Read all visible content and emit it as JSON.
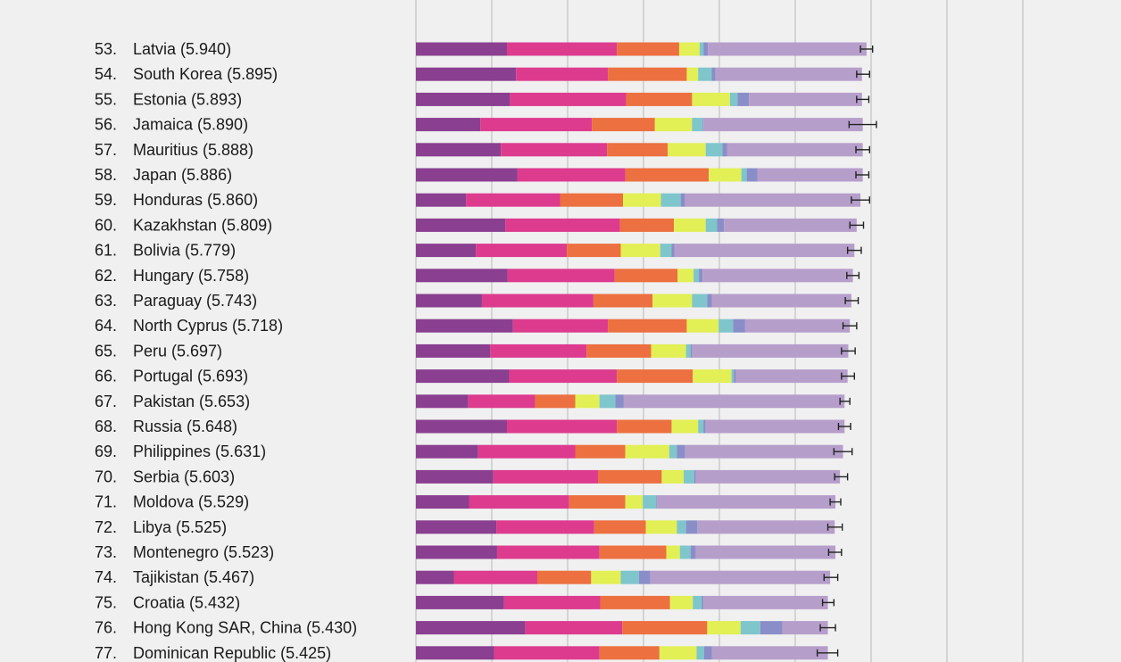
{
  "chart_data": {
    "type": "bar",
    "stacked": true,
    "orientation": "horizontal",
    "xlim": [
      0,
      8
    ],
    "grid": true,
    "colors": [
      "#8a3f90",
      "#dd3b8e",
      "#ec7040",
      "#e2ef55",
      "#7ec6cc",
      "#8a8ec8",
      "#b69ecb"
    ],
    "rows": [
      {
        "rank": "53.",
        "country": "Latvia",
        "score_label": "(5.940)",
        "score": 5.94,
        "ci": [
          5.86,
          6.02
        ],
        "segments": [
          1.2,
          1.45,
          0.82,
          0.27,
          0.05,
          0.06,
          2.09
        ]
      },
      {
        "rank": "54.",
        "country": "South Korea",
        "score_label": "(5.895)",
        "score": 5.895,
        "ci": [
          5.81,
          5.98
        ],
        "segments": [
          1.32,
          1.21,
          1.04,
          0.15,
          0.18,
          0.05,
          1.93
        ]
      },
      {
        "rank": "55.",
        "country": "Estonia",
        "score_label": "(5.893)",
        "score": 5.893,
        "ci": [
          5.81,
          5.97
        ],
        "segments": [
          1.24,
          1.53,
          0.87,
          0.5,
          0.1,
          0.15,
          1.49
        ]
      },
      {
        "rank": "56.",
        "country": "Jamaica",
        "score_label": "(5.890)",
        "score": 5.89,
        "ci": [
          5.71,
          6.07
        ],
        "segments": [
          0.85,
          1.47,
          0.83,
          0.49,
          0.14,
          0.01,
          2.1
        ]
      },
      {
        "rank": "57.",
        "country": "Mauritius",
        "score_label": "(5.888)",
        "score": 5.888,
        "ci": [
          5.8,
          5.98
        ],
        "segments": [
          1.12,
          1.4,
          0.8,
          0.5,
          0.22,
          0.06,
          1.79
        ]
      },
      {
        "rank": "58.",
        "country": "Japan",
        "score_label": "(5.886)",
        "score": 5.886,
        "ci": [
          5.8,
          5.97
        ],
        "segments": [
          1.34,
          1.42,
          1.1,
          0.43,
          0.07,
          0.14,
          1.39
        ]
      },
      {
        "rank": "59.",
        "country": "Honduras",
        "score_label": "(5.860)",
        "score": 5.86,
        "ci": [
          5.74,
          5.98
        ],
        "segments": [
          0.66,
          1.24,
          0.83,
          0.5,
          0.26,
          0.06,
          2.31
        ]
      },
      {
        "rank": "60.",
        "country": "Kazakhstan",
        "score_label": "(5.809)",
        "score": 5.809,
        "ci": [
          5.72,
          5.9
        ],
        "segments": [
          1.18,
          1.51,
          0.71,
          0.42,
          0.15,
          0.09,
          1.75
        ]
      },
      {
        "rank": "61.",
        "country": "Bolivia",
        "score_label": "(5.779)",
        "score": 5.779,
        "ci": [
          5.69,
          5.87
        ],
        "segments": [
          0.79,
          1.2,
          0.71,
          0.52,
          0.15,
          0.04,
          2.37
        ]
      },
      {
        "rank": "62.",
        "country": "Hungary",
        "score_label": "(5.758)",
        "score": 5.758,
        "ci": [
          5.68,
          5.84
        ],
        "segments": [
          1.21,
          1.41,
          0.83,
          0.21,
          0.07,
          0.05,
          1.98
        ]
      },
      {
        "rank": "63.",
        "country": "Paraguay",
        "score_label": "(5.743)",
        "score": 5.743,
        "ci": [
          5.66,
          5.83
        ],
        "segments": [
          0.87,
          1.47,
          0.78,
          0.52,
          0.2,
          0.06,
          1.84
        ]
      },
      {
        "rank": "64.",
        "country": "North Cyprus",
        "score_label": "(5.718)",
        "score": 5.718,
        "ci": [
          5.63,
          5.81
        ],
        "segments": [
          1.28,
          1.25,
          1.04,
          0.42,
          0.19,
          0.16,
          1.38
        ]
      },
      {
        "rank": "65.",
        "country": "Peru",
        "score_label": "(5.697)",
        "score": 5.697,
        "ci": [
          5.61,
          5.79
        ],
        "segments": [
          0.98,
          1.27,
          0.85,
          0.46,
          0.06,
          0.02,
          2.06
        ]
      },
      {
        "rank": "66.",
        "country": "Portugal",
        "score_label": "(5.693)",
        "score": 5.693,
        "ci": [
          5.61,
          5.78
        ],
        "segments": [
          1.23,
          1.42,
          1.0,
          0.51,
          0.03,
          0.03,
          1.47
        ]
      },
      {
        "rank": "67.",
        "country": "Pakistan",
        "score_label": "(5.653)",
        "score": 5.653,
        "ci": [
          5.59,
          5.72
        ],
        "segments": [
          0.69,
          0.88,
          0.53,
          0.32,
          0.21,
          0.11,
          2.91
        ]
      },
      {
        "rank": "68.",
        "country": "Russia",
        "score_label": "(5.648)",
        "score": 5.648,
        "ci": [
          5.57,
          5.73
        ],
        "segments": [
          1.2,
          1.45,
          0.72,
          0.35,
          0.07,
          0.03,
          1.83
        ]
      },
      {
        "rank": "69.",
        "country": "Philippines",
        "score_label": "(5.631)",
        "score": 5.631,
        "ci": [
          5.51,
          5.75
        ],
        "segments": [
          0.82,
          1.28,
          0.66,
          0.58,
          0.1,
          0.11,
          2.08
        ]
      },
      {
        "rank": "70.",
        "country": "Serbia",
        "score_label": "(5.603)",
        "score": 5.603,
        "ci": [
          5.52,
          5.69
        ],
        "segments": [
          1.02,
          1.38,
          0.84,
          0.29,
          0.14,
          0.02,
          1.9
        ]
      },
      {
        "rank": "71.",
        "country": "Moldova",
        "score_label": "(5.529)",
        "score": 5.529,
        "ci": [
          5.46,
          5.6
        ],
        "segments": [
          0.7,
          1.32,
          0.74,
          0.23,
          0.18,
          0.01,
          2.35
        ]
      },
      {
        "rank": "72.",
        "country": "Libya",
        "score_label": "(5.525)",
        "score": 5.525,
        "ci": [
          5.43,
          5.62
        ],
        "segments": [
          1.06,
          1.29,
          0.68,
          0.41,
          0.12,
          0.15,
          1.81
        ]
      },
      {
        "rank": "73.",
        "country": "Montenegro",
        "score_label": "(5.523)",
        "score": 5.523,
        "ci": [
          5.44,
          5.61
        ],
        "segments": [
          1.07,
          1.35,
          0.88,
          0.18,
          0.14,
          0.07,
          1.84
        ]
      },
      {
        "rank": "74.",
        "country": "Tajikistan",
        "score_label": "(5.467)",
        "score": 5.467,
        "ci": [
          5.38,
          5.56
        ],
        "segments": [
          0.5,
          1.1,
          0.71,
          0.39,
          0.24,
          0.15,
          2.37
        ]
      },
      {
        "rank": "75.",
        "country": "Croatia",
        "score_label": "(5.432)",
        "score": 5.432,
        "ci": [
          5.36,
          5.51
        ],
        "segments": [
          1.16,
          1.27,
          0.92,
          0.3,
          0.12,
          0.02,
          1.64
        ]
      },
      {
        "rank": "76.",
        "country": "Hong Kong SAR, China",
        "score_label": "(5.430)",
        "score": 5.43,
        "ci": [
          5.33,
          5.53
        ],
        "segments": [
          1.44,
          1.28,
          1.12,
          0.44,
          0.26,
          0.29,
          0.6
        ]
      },
      {
        "rank": "77.",
        "country": "Dominican Republic",
        "score_label": "(5.425)",
        "score": 5.425,
        "ci": [
          5.29,
          5.56
        ],
        "segments": [
          1.03,
          1.39,
          0.79,
          0.49,
          0.1,
          0.1,
          1.53
        ]
      }
    ]
  }
}
